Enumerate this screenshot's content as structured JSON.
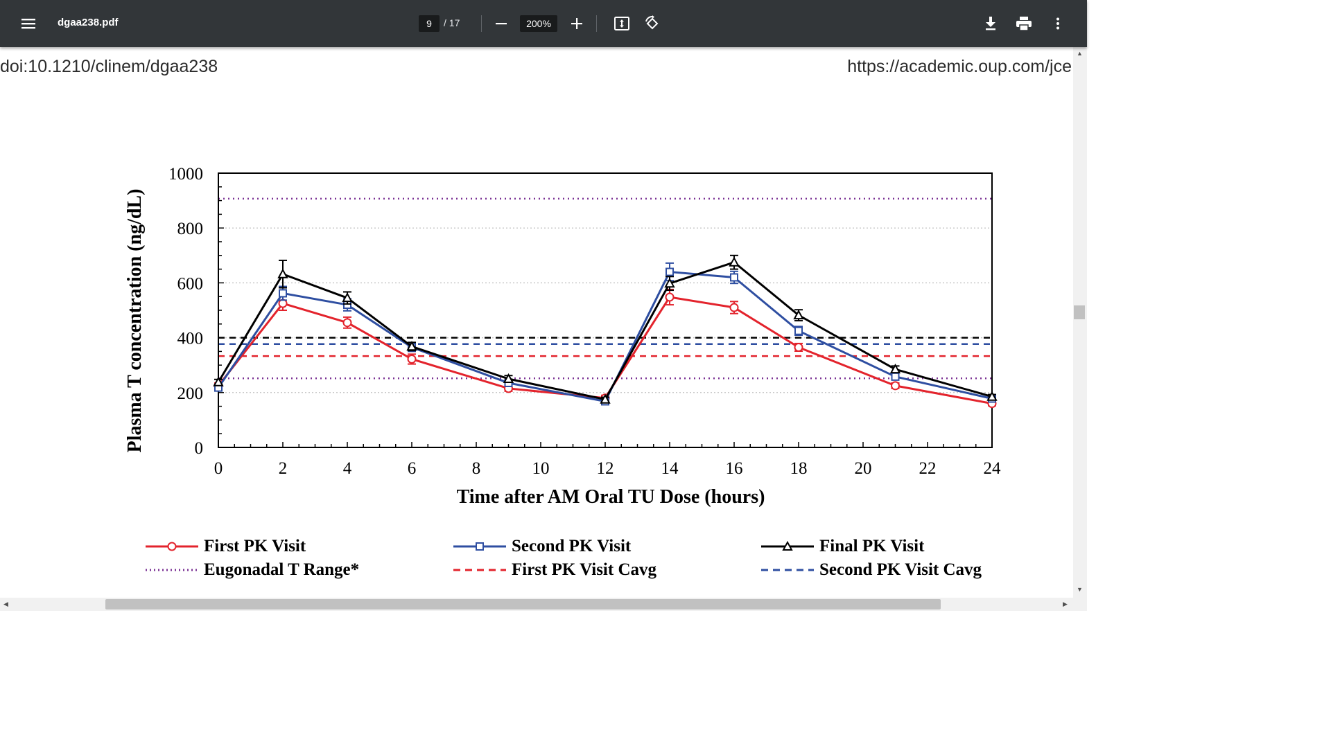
{
  "toolbar": {
    "filename": "dgaa238.pdf",
    "page_current": "9",
    "page_total": "/ 17",
    "zoom": "200%"
  },
  "page": {
    "doi": "doi:10.1210/clinem/dgaa238",
    "url": "https://academic.oup.com/jce"
  },
  "chart_data": {
    "type": "line",
    "xlabel": "Time after AM Oral TU Dose (hours)",
    "ylabel": "Plasma T concentration (ng/dL)",
    "xlim": [
      0,
      24
    ],
    "ylim": [
      0,
      1000
    ],
    "x_ticks": [
      0,
      2,
      4,
      6,
      8,
      10,
      12,
      14,
      16,
      18,
      20,
      22,
      24
    ],
    "y_ticks": [
      0,
      200,
      400,
      600,
      800,
      1000
    ],
    "grid": "horizontal dotted",
    "legend_placement": "bottom",
    "series": [
      {
        "name": "First PK Visit",
        "color": "#e3232c",
        "marker": "circle",
        "x": [
          0,
          2,
          4,
          6,
          9,
          12,
          14,
          16,
          18,
          21,
          24
        ],
        "y": [
          225,
          525,
          455,
          322,
          215,
          180,
          548,
          510,
          365,
          225,
          160
        ],
        "err": [
          10,
          25,
          20,
          18,
          10,
          10,
          28,
          22,
          14,
          10,
          8
        ]
      },
      {
        "name": "Second PK Visit",
        "color": "#2e4ea1",
        "marker": "square",
        "x": [
          0,
          2,
          4,
          6,
          9,
          12,
          14,
          16,
          18,
          21,
          24
        ],
        "y": [
          218,
          562,
          520,
          365,
          235,
          168,
          640,
          620,
          425,
          258,
          178
        ],
        "err": [
          10,
          25,
          22,
          15,
          12,
          8,
          32,
          22,
          16,
          12,
          8
        ]
      },
      {
        "name": "Final PK Visit",
        "color": "#000000",
        "marker": "triangle",
        "x": [
          0,
          2,
          4,
          6,
          9,
          12,
          14,
          16,
          18,
          21,
          24
        ],
        "y": [
          238,
          632,
          545,
          368,
          250,
          175,
          598,
          675,
          482,
          285,
          185
        ],
        "err": [
          10,
          50,
          22,
          15,
          12,
          8,
          25,
          25,
          20,
          12,
          8
        ]
      }
    ],
    "reference_lines": [
      {
        "name": "Eugonadal T Range*",
        "color": "#7b3294",
        "style": "dotted",
        "y": [
          252,
          907
        ]
      },
      {
        "name": "First PK Visit Cavg",
        "color": "#e3232c",
        "style": "dashed",
        "y": [
          333
        ]
      },
      {
        "name": "Second PK Visit Cavg",
        "color": "#2e4ea1",
        "style": "dashed",
        "y": [
          377
        ]
      },
      {
        "name": "",
        "color": "#000000",
        "style": "dashed",
        "y": [
          400
        ]
      }
    ]
  }
}
